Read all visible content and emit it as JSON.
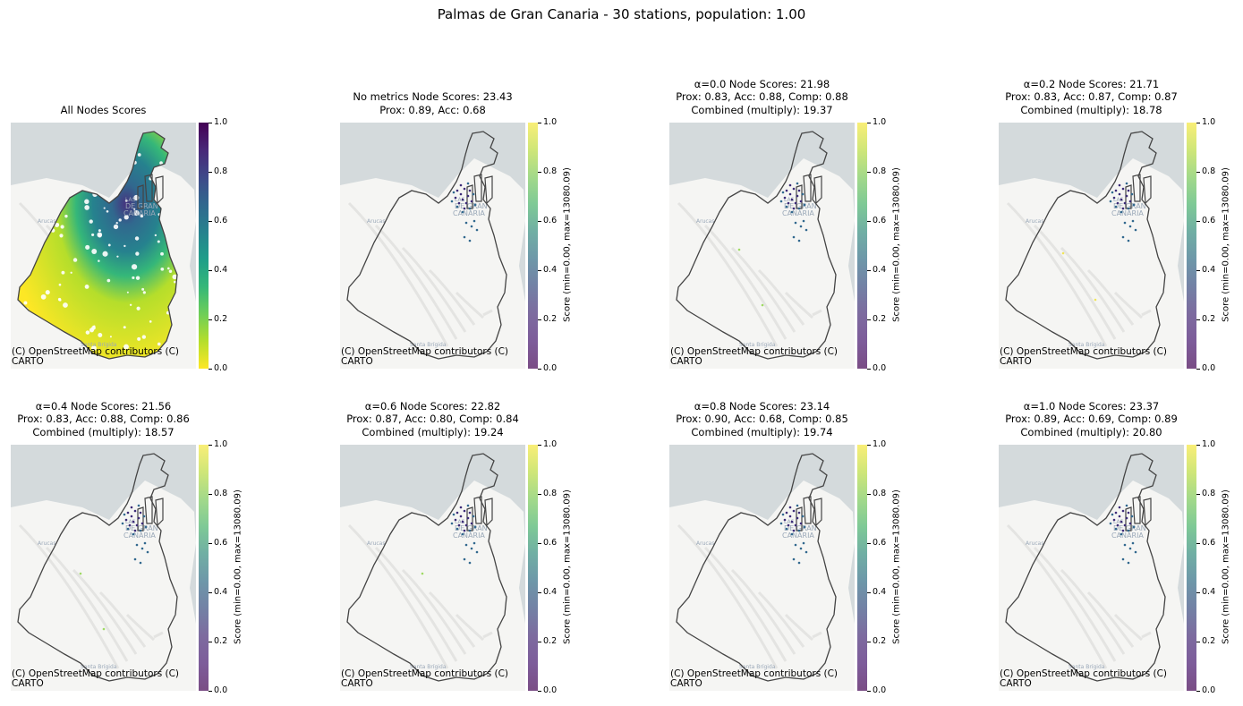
{
  "chart_data": {
    "title": "Palmas de Gran Canaria - 30 stations, population: 1.00",
    "panels": [
      {
        "type": "heatmap",
        "title_lines": [
          "All Nodes Scores"
        ],
        "colorbar": {
          "label": "",
          "ticks": [
            "0.0",
            "0.2",
            "0.4",
            "0.6",
            "0.8",
            "1.0"
          ],
          "range": [
            0,
            1
          ],
          "colormap": "viridis_r"
        },
        "attribution": [
          "(C) OpenStreetMap contributors (C)",
          "CARTO"
        ]
      },
      {
        "type": "scatter",
        "title_lines": [
          "No metrics Node Scores: 23.43",
          "Prox: 0.89, Acc: 0.68"
        ],
        "metrics": {
          "node_scores": 23.43,
          "prox": 0.89,
          "acc": 0.68
        },
        "colorbar": {
          "label": "Score (min=0.00, max=13080.09)",
          "ticks": [
            "0.0",
            "0.2",
            "0.4",
            "0.6",
            "0.8",
            "1.0"
          ],
          "range": [
            0,
            1
          ],
          "colormap": "viridis"
        },
        "attribution": [
          "(C) OpenStreetMap contributors (C)",
          "CARTO"
        ]
      },
      {
        "type": "scatter",
        "title_lines": [
          "α=0.0 Node Scores: 21.98",
          "Prox: 0.83, Acc: 0.88, Comp: 0.88",
          "Combined (multiply): 19.37"
        ],
        "metrics": {
          "alpha": 0.0,
          "node_scores": 21.98,
          "prox": 0.83,
          "acc": 0.88,
          "comp": 0.88,
          "combined": 19.37
        },
        "colorbar": {
          "label": "Score (min=0.00, max=13080.09)",
          "ticks": [
            "0.0",
            "0.2",
            "0.4",
            "0.6",
            "0.8",
            "1.0"
          ],
          "range": [
            0,
            1
          ],
          "colormap": "viridis"
        },
        "attribution": [
          "(C) OpenStreetMap contributors (C)",
          "CARTO"
        ]
      },
      {
        "type": "scatter",
        "title_lines": [
          "α=0.2 Node Scores: 21.71",
          "Prox: 0.83, Acc: 0.87, Comp: 0.87",
          "Combined (multiply): 18.78"
        ],
        "metrics": {
          "alpha": 0.2,
          "node_scores": 21.71,
          "prox": 0.83,
          "acc": 0.87,
          "comp": 0.87,
          "combined": 18.78
        },
        "colorbar": {
          "label": "Score (min=0.00, max=13080.09)",
          "ticks": [
            "0.0",
            "0.2",
            "0.4",
            "0.6",
            "0.8",
            "1.0"
          ],
          "range": [
            0,
            1
          ],
          "colormap": "viridis"
        },
        "attribution": [
          "(C) OpenStreetMap contributors (C)",
          "CARTO"
        ]
      },
      {
        "type": "scatter",
        "title_lines": [
          "α=0.4 Node Scores: 21.56",
          "Prox: 0.83, Acc: 0.88, Comp: 0.86",
          "Combined (multiply): 18.57"
        ],
        "metrics": {
          "alpha": 0.4,
          "node_scores": 21.56,
          "prox": 0.83,
          "acc": 0.88,
          "comp": 0.86,
          "combined": 18.57
        },
        "colorbar": {
          "label": "Score (min=0.00, max=13080.09)",
          "ticks": [
            "0.0",
            "0.2",
            "0.4",
            "0.6",
            "0.8",
            "1.0"
          ],
          "range": [
            0,
            1
          ],
          "colormap": "viridis"
        },
        "attribution": [
          "(C) OpenStreetMap contributors (C)",
          "CARTO"
        ]
      },
      {
        "type": "scatter",
        "title_lines": [
          "α=0.6 Node Scores: 22.82",
          "Prox: 0.87, Acc: 0.80, Comp: 0.84",
          "Combined (multiply): 19.24"
        ],
        "metrics": {
          "alpha": 0.6,
          "node_scores": 22.82,
          "prox": 0.87,
          "acc": 0.8,
          "comp": 0.84,
          "combined": 19.24
        },
        "colorbar": {
          "label": "Score (min=0.00, max=13080.09)",
          "ticks": [
            "0.0",
            "0.2",
            "0.4",
            "0.6",
            "0.8",
            "1.0"
          ],
          "range": [
            0,
            1
          ],
          "colormap": "viridis"
        },
        "attribution": [
          "(C) OpenStreetMap contributors (C)",
          "CARTO"
        ]
      },
      {
        "type": "scatter",
        "title_lines": [
          "α=0.8 Node Scores: 23.14",
          "Prox: 0.90, Acc: 0.68, Comp: 0.85",
          "Combined (multiply): 19.74"
        ],
        "metrics": {
          "alpha": 0.8,
          "node_scores": 23.14,
          "prox": 0.9,
          "acc": 0.68,
          "comp": 0.85,
          "combined": 19.74
        },
        "colorbar": {
          "label": "Score (min=0.00, max=13080.09)",
          "ticks": [
            "0.0",
            "0.2",
            "0.4",
            "0.6",
            "0.8",
            "1.0"
          ],
          "range": [
            0,
            1
          ],
          "colormap": "viridis"
        },
        "attribution": [
          "(C) OpenStreetMap contributors (C)",
          "CARTO"
        ]
      },
      {
        "type": "scatter",
        "title_lines": [
          "α=1.0 Node Scores: 23.37",
          "Prox: 0.89, Acc: 0.69, Comp: 0.89",
          "Combined (multiply): 20.80"
        ],
        "metrics": {
          "alpha": 1.0,
          "node_scores": 23.37,
          "prox": 0.89,
          "acc": 0.69,
          "comp": 0.89,
          "combined": 20.8
        },
        "colorbar": {
          "label": "Score (min=0.00, max=13080.09)",
          "ticks": [
            "0.0",
            "0.2",
            "0.4",
            "0.6",
            "0.8",
            "1.0"
          ],
          "range": [
            0,
            1
          ],
          "colormap": "viridis"
        },
        "attribution": [
          "(C) OpenStreetMap contributors (C)",
          "CARTO"
        ]
      }
    ],
    "basemap_labels": [
      "Arucas",
      "LAS",
      "DE GRAN",
      "CANARIA",
      "Santa Brígida"
    ],
    "colors": {
      "sea": "#d4dadc",
      "land": "#f5f5f3",
      "boundary": "#444444",
      "station": "#31688e"
    }
  }
}
